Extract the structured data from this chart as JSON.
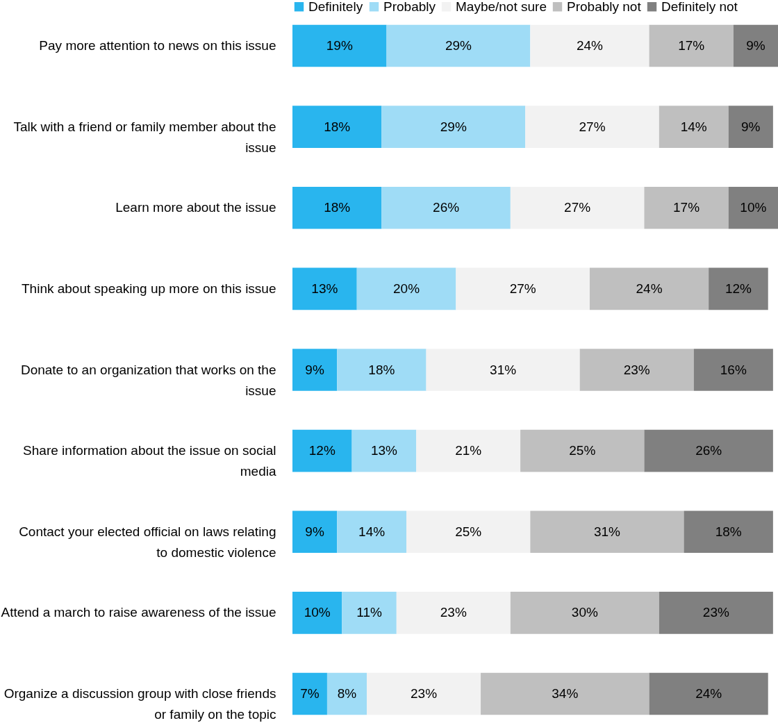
{
  "chart_data": {
    "type": "bar",
    "orientation": "horizontal",
    "stacked": true,
    "legend": "top left",
    "grid": false,
    "categories": [
      "Pay more attention to news on this issue",
      "Talk with a friend or family member about the issue",
      "Learn more about the issue",
      "Think about speaking up more on this issue",
      "Donate to an organization that works on the issue",
      "Share information about the issue on social media",
      "Contact your elected official on laws relating to domestic violence",
      "Attend a march to raise awareness of the issue",
      "Organize a discussion group with close friends or family on the topic"
    ],
    "series": [
      {
        "name": "Definitely",
        "color": "#29b5ee",
        "values": [
          19,
          18,
          18,
          13,
          9,
          12,
          9,
          10,
          7
        ],
        "value_labels": [
          "19%",
          "18%",
          "18%",
          "13%",
          "9%",
          "12%",
          "9%",
          "10%",
          "7%"
        ]
      },
      {
        "name": "Probably",
        "color": "#9fdcf6",
        "values": [
          29,
          29,
          26,
          20,
          18,
          13,
          14,
          11,
          8
        ],
        "value_labels": [
          "29%",
          "29%",
          "26%",
          "20%",
          "18%",
          "13%",
          "14%",
          "11%",
          "8%"
        ]
      },
      {
        "name": "Maybe/not sure",
        "color": "#f2f2f2",
        "values": [
          24,
          27,
          27,
          27,
          31,
          21,
          25,
          23,
          23
        ],
        "value_labels": [
          "24%",
          "27%",
          "27%",
          "27%",
          "31%",
          "21%",
          "25%",
          "23%",
          "23%"
        ]
      },
      {
        "name": "Probably not",
        "color": "#bfbfbf",
        "values": [
          17,
          14,
          17,
          24,
          23,
          25,
          31,
          30,
          34
        ],
        "value_labels": [
          "17%",
          "14%",
          "17%",
          "24%",
          "23%",
          "25%",
          "31%",
          "30%",
          "34%"
        ]
      },
      {
        "name": "Definitely not",
        "color": "#808080",
        "values": [
          9,
          9,
          10,
          12,
          16,
          26,
          18,
          23,
          24
        ],
        "value_labels": [
          "9%",
          "9%",
          "10%",
          "12%",
          "16%",
          "26%",
          "18%",
          "23%",
          "24%"
        ]
      }
    ]
  }
}
